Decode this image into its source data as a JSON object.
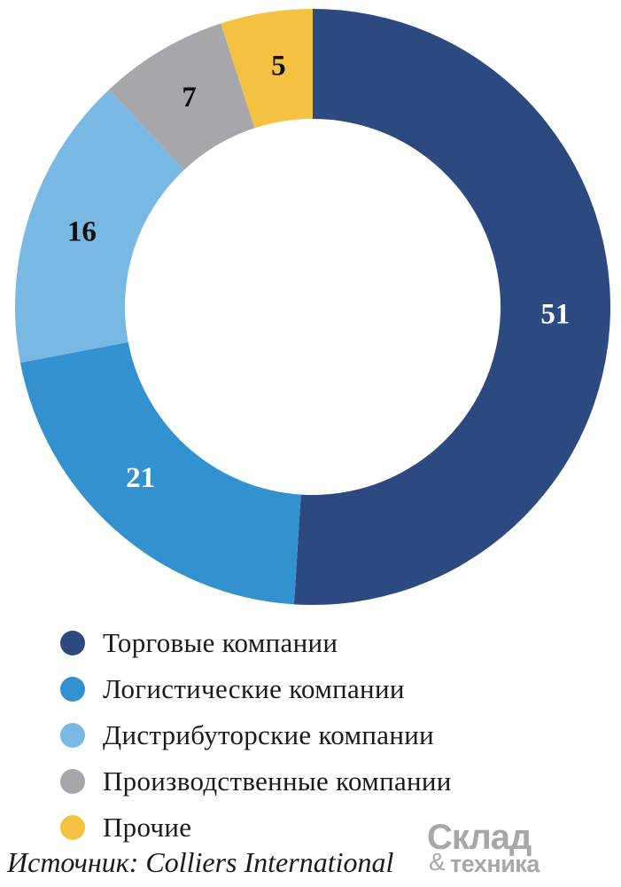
{
  "chart_data": {
    "type": "pie",
    "donut": true,
    "title": "",
    "categories": [
      "Торговые компании",
      "Логистические компании",
      "Дистрибуторские компании",
      "Производственные компании",
      "Прочие"
    ],
    "values": [
      51,
      21,
      16,
      7,
      5
    ],
    "data_labels": [
      "51",
      "21",
      "16",
      "7",
      "5"
    ],
    "colors": [
      "#2c4a80",
      "#3491d0",
      "#7ab8e4",
      "#a6a6ab",
      "#f4c140"
    ],
    "label_colors": [
      "#ffffff",
      "#ffffff",
      "#111111",
      "#111111",
      "#111111"
    ],
    "legend_position": "bottom"
  },
  "source": "Источник: Colliers International",
  "logo": {
    "top": "Склад",
    "amp": "&",
    "bottom": "техника"
  }
}
